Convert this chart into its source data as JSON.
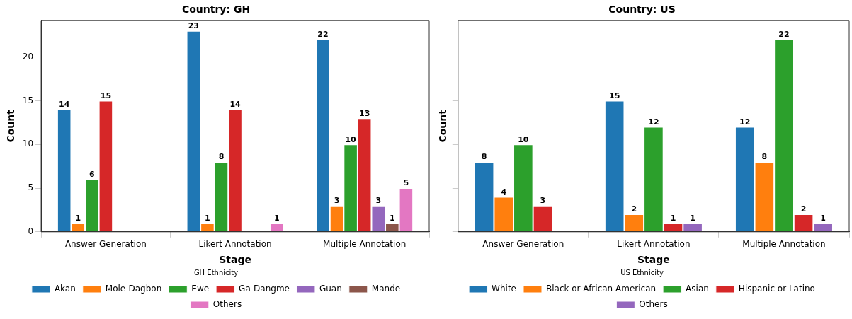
{
  "chart_data": [
    {
      "type": "bar",
      "title": "Country: GH",
      "xlabel": "Stage",
      "ylabel": "Count",
      "legend_title": "GH Ethnicity",
      "legend": "bottom",
      "grid": false,
      "data_labels": true,
      "categories": [
        "Answer Generation",
        "Likert Annotation",
        "Multiple Annotation"
      ],
      "ylim": [
        0,
        24.2
      ],
      "yticks": [
        0,
        5,
        10,
        15,
        20
      ],
      "series": [
        {
          "name": "Akan",
          "color": "#1f77b4",
          "values": [
            14,
            23,
            22
          ]
        },
        {
          "name": "Mole-Dagbon",
          "color": "#ff7f0e",
          "values": [
            1,
            1,
            3
          ]
        },
        {
          "name": "Ewe",
          "color": "#2ca02c",
          "values": [
            6,
            8,
            10
          ]
        },
        {
          "name": "Ga-Dangme",
          "color": "#d62728",
          "values": [
            15,
            14,
            13
          ]
        },
        {
          "name": "Guan",
          "color": "#9467bd",
          "values": [
            null,
            null,
            3
          ]
        },
        {
          "name": "Mande",
          "color": "#8c564b",
          "values": [
            null,
            null,
            1
          ]
        },
        {
          "name": "Others",
          "color": "#e377c2",
          "values": [
            null,
            1,
            5
          ]
        }
      ]
    },
    {
      "type": "bar",
      "title": "Country: US",
      "xlabel": "Stage",
      "ylabel": "Count",
      "legend_title": "US Ethnicity",
      "legend": "bottom",
      "grid": false,
      "data_labels": true,
      "tick_labels": "x",
      "categories": [
        "Answer Generation",
        "Likert Annotation",
        "Multiple Annotation"
      ],
      "ylim": [
        0,
        24.2
      ],
      "yticks": [
        0,
        5,
        10,
        15,
        20
      ],
      "series": [
        {
          "name": "White",
          "color": "#1f77b4",
          "values": [
            8,
            15,
            12
          ]
        },
        {
          "name": "Black or African American",
          "color": "#ff7f0e",
          "values": [
            4,
            2,
            8
          ]
        },
        {
          "name": "Asian",
          "color": "#2ca02c",
          "values": [
            10,
            12,
            22
          ]
        },
        {
          "name": "Hispanic or Latino",
          "color": "#d62728",
          "values": [
            3,
            1,
            2
          ]
        },
        {
          "name": "Others",
          "color": "#9467bd",
          "values": [
            null,
            1,
            1
          ]
        }
      ]
    }
  ]
}
